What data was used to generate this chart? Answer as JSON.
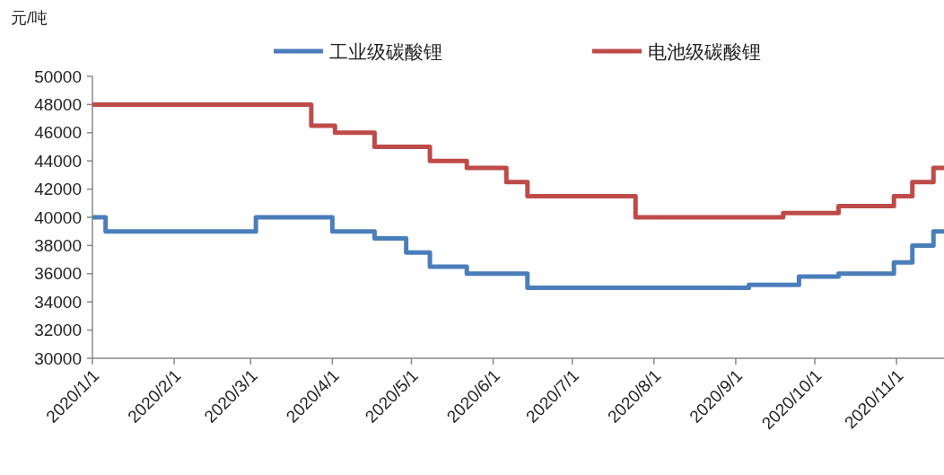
{
  "chart_data": {
    "type": "step",
    "ylabel": "元/吨",
    "legend": "top",
    "grid": false,
    "xlim": [
      "2020-01-01",
      "2020-11-19"
    ],
    "ylim": [
      30000,
      50000
    ],
    "yticks": [
      30000,
      32000,
      34000,
      36000,
      38000,
      40000,
      42000,
      44000,
      46000,
      48000,
      50000
    ],
    "xticks": [
      {
        "value": "2020-01-01",
        "label": "2020/1/1"
      },
      {
        "value": "2020-02-01",
        "label": "2020/2/1"
      },
      {
        "value": "2020-03-01",
        "label": "2020/3/1"
      },
      {
        "value": "2020-04-01",
        "label": "2020/4/1"
      },
      {
        "value": "2020-05-01",
        "label": "2020/5/1"
      },
      {
        "value": "2020-06-01",
        "label": "2020/6/1"
      },
      {
        "value": "2020-07-01",
        "label": "2020/7/1"
      },
      {
        "value": "2020-08-01",
        "label": "2020/8/1"
      },
      {
        "value": "2020-09-01",
        "label": "2020/9/1"
      },
      {
        "value": "2020-10-01",
        "label": "2020/10/1"
      },
      {
        "value": "2020-11-01",
        "label": "2020/11/1"
      }
    ],
    "series": [
      {
        "name": "工业级碳酸锂",
        "color": "#4a7ebb",
        "x": [
          "2020-01-01",
          "2020-01-06",
          "2020-03-03",
          "2020-04-01",
          "2020-04-17",
          "2020-04-29",
          "2020-05-08",
          "2020-05-22",
          "2020-06-14",
          "2020-09-06",
          "2020-09-25",
          "2020-10-10",
          "2020-10-31",
          "2020-11-07",
          "2020-11-15",
          "2020-11-19"
        ],
        "values": [
          40000,
          39000,
          40000,
          39000,
          38500,
          37500,
          36500,
          36000,
          35000,
          35200,
          35800,
          36000,
          36800,
          38000,
          39000,
          39000
        ]
      },
      {
        "name": "电池级碳酸锂",
        "color": "#be4b48",
        "x": [
          "2020-01-01",
          "2020-03-24",
          "2020-04-02",
          "2020-04-17",
          "2020-05-08",
          "2020-05-22",
          "2020-06-06",
          "2020-06-14",
          "2020-07-25",
          "2020-09-19",
          "2020-10-10",
          "2020-10-31",
          "2020-11-07",
          "2020-11-15",
          "2020-11-19"
        ],
        "values": [
          48000,
          46500,
          46000,
          45000,
          44000,
          43500,
          42500,
          41500,
          40000,
          40300,
          40800,
          41500,
          42500,
          43500,
          43500
        ]
      }
    ]
  }
}
